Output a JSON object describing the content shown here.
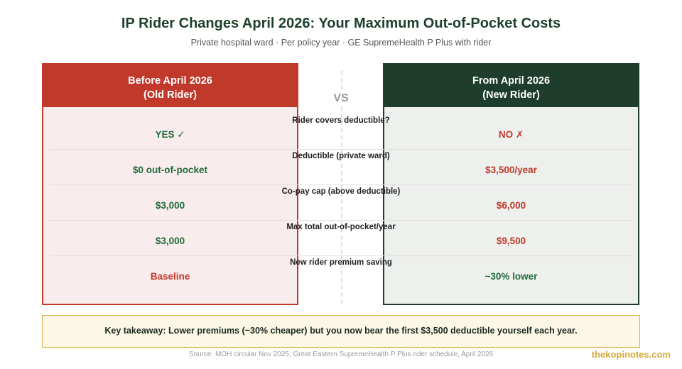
{
  "header": {
    "title": "IP Rider Changes April 2026: Your Maximum Out-of-Pocket Costs",
    "subtitle": "Private hospital ward · Per policy year · GE SupremeHealth P Plus with rider"
  },
  "left_panel": {
    "title_line1": "Before April 2026",
    "title_line2": "(Old Rider)"
  },
  "right_panel": {
    "title_line1": "From April 2026",
    "title_line2": "(New Rider)"
  },
  "vs_label": "VS",
  "rows": [
    {
      "label": "Rider covers deductible?",
      "old": "YES ✓",
      "new": "NO ✗"
    },
    {
      "label": "Deductible (private ward)",
      "old": "$0 out-of-pocket",
      "new": "$3,500/year"
    },
    {
      "label": "Co-pay cap (above deductible)",
      "old": "$3,000",
      "new": "$6,000"
    },
    {
      "label": "Max total out-of-pocket/year",
      "old": "$3,000",
      "new": "$9,500"
    },
    {
      "label": "New rider premium saving",
      "old": "Baseline",
      "new": "~30% lower"
    }
  ],
  "takeaway": "Key takeaway: Lower premiums (~30% cheaper) but you now bear the first $3,500 deductible yourself each year.",
  "source": "Source: MOH circular Nov 2025; Great Eastern SupremeHealth P Plus rider schedule, April 2026",
  "brand": "thekopinotes.com",
  "colors": {
    "old_accent": "#c0392b",
    "new_accent": "#1e3d2c",
    "positive": "#1f6b3a",
    "takeaway_border": "#d4b352"
  }
}
